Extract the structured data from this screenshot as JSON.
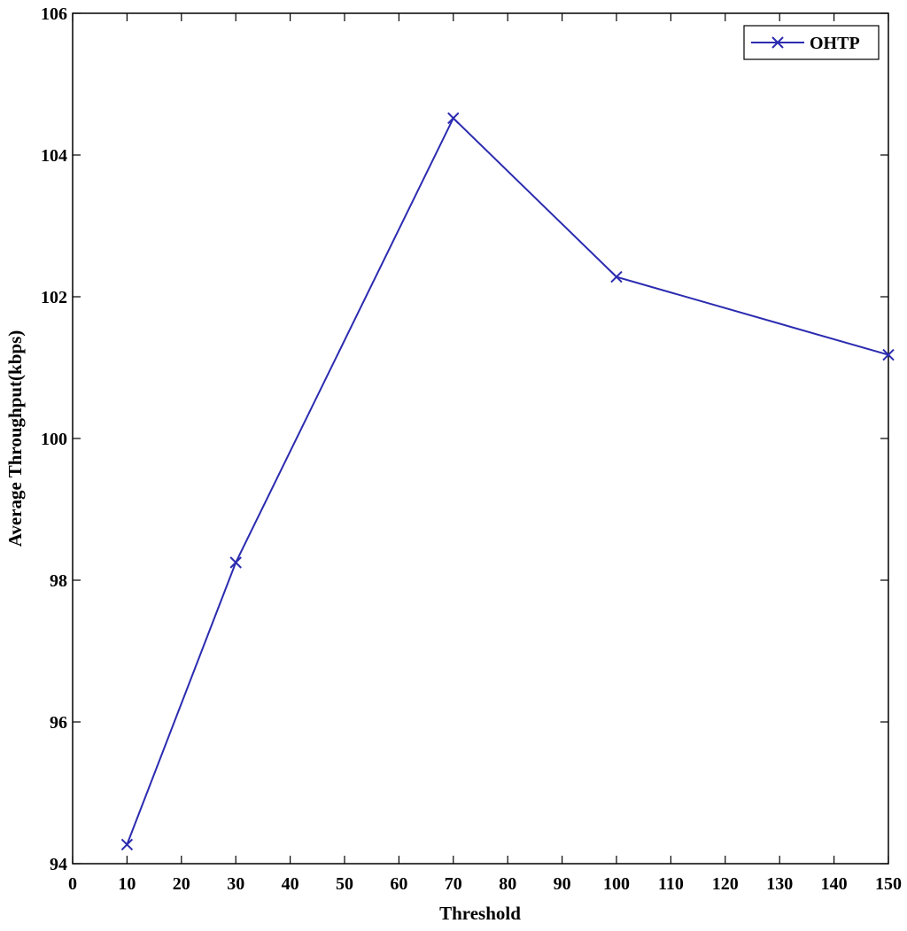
{
  "chart_data": {
    "type": "line",
    "title": "",
    "xlabel": "Threshold",
    "ylabel": "Average Throughput(kbps)",
    "xlim": [
      0,
      150
    ],
    "ylim": [
      94,
      106
    ],
    "xticks": [
      0,
      10,
      20,
      30,
      40,
      50,
      60,
      70,
      80,
      90,
      100,
      110,
      120,
      130,
      140,
      150
    ],
    "yticks": [
      94,
      96,
      98,
      100,
      102,
      104,
      106
    ],
    "grid": false,
    "legend_position": "top-right",
    "series": [
      {
        "name": "OHTP",
        "color": "#2b2bb0",
        "marker": "x",
        "x": [
          10,
          30,
          70,
          100,
          150
        ],
        "y": [
          94.27,
          98.25,
          104.52,
          102.28,
          101.18
        ]
      }
    ]
  }
}
